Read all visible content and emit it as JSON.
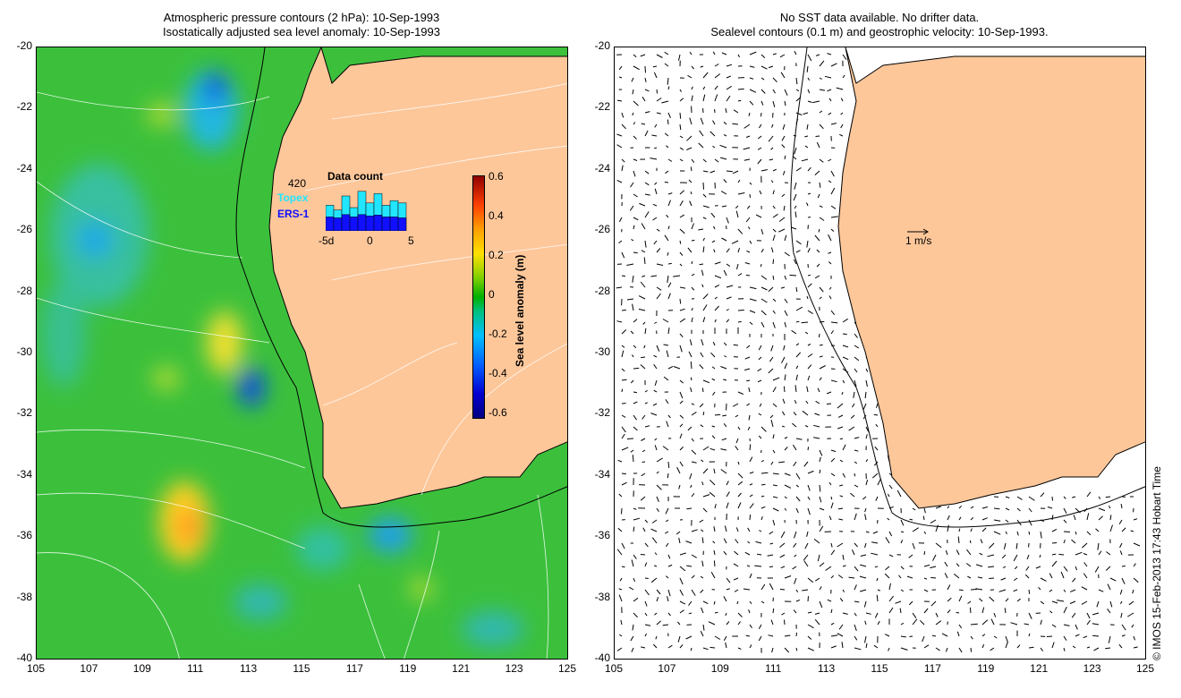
{
  "left_panel": {
    "title_line1": "Atmospheric pressure contours (2 hPa): 10-Sep-1993",
    "title_line2": "Isostatically adjusted sea level anomaly: 10-Sep-1993",
    "y_ticks": [
      "-20",
      "-22",
      "-24",
      "-26",
      "-28",
      "-30",
      "-32",
      "-34",
      "-36",
      "-38",
      "-40"
    ],
    "x_ticks": [
      "105",
      "107",
      "109",
      "111",
      "113",
      "115",
      "117",
      "119",
      "121",
      "123",
      "125"
    ],
    "inset": {
      "title": "Data count",
      "count": "420",
      "series1": "Topex",
      "series2": "ERS-1",
      "x_labels": [
        "-5d",
        "0",
        "5"
      ],
      "topex_color": "#22e6ff",
      "ers_color": "#1010ff",
      "topex_frac": [
        0.55,
        0.45,
        0.75,
        0.5,
        0.85,
        0.6,
        0.8,
        0.55,
        0.65,
        0.6
      ],
      "ers_frac": [
        0.3,
        0.28,
        0.35,
        0.3,
        0.35,
        0.32,
        0.34,
        0.3,
        0.3,
        0.28
      ]
    },
    "colorbar": {
      "label": "Sea level anomaly (m)",
      "ticks": [
        "0.6",
        "0.4",
        "0.2",
        "0",
        "-0.2",
        "-0.4",
        "-0.6"
      ]
    }
  },
  "right_panel": {
    "title_line1": "No SST data available.  No drifter data.",
    "title_line2": "Sealevel contours (0.1 m) and geostrophic velocity: 10-Sep-1993.",
    "y_ticks": [
      "-20",
      "-22",
      "-24",
      "-26",
      "-28",
      "-30",
      "-32",
      "-34",
      "-36",
      "-38",
      "-40"
    ],
    "x_ticks": [
      "105",
      "107",
      "109",
      "111",
      "113",
      "115",
      "117",
      "119",
      "121",
      "123",
      "125"
    ],
    "scale_label": "1 m/s"
  },
  "credit": "© IMOS 15-Feb-2013 17:43 Hobart Time",
  "colors": {
    "land": "#fdc79a",
    "ocean": "#40c040",
    "frame": "#000000"
  }
}
